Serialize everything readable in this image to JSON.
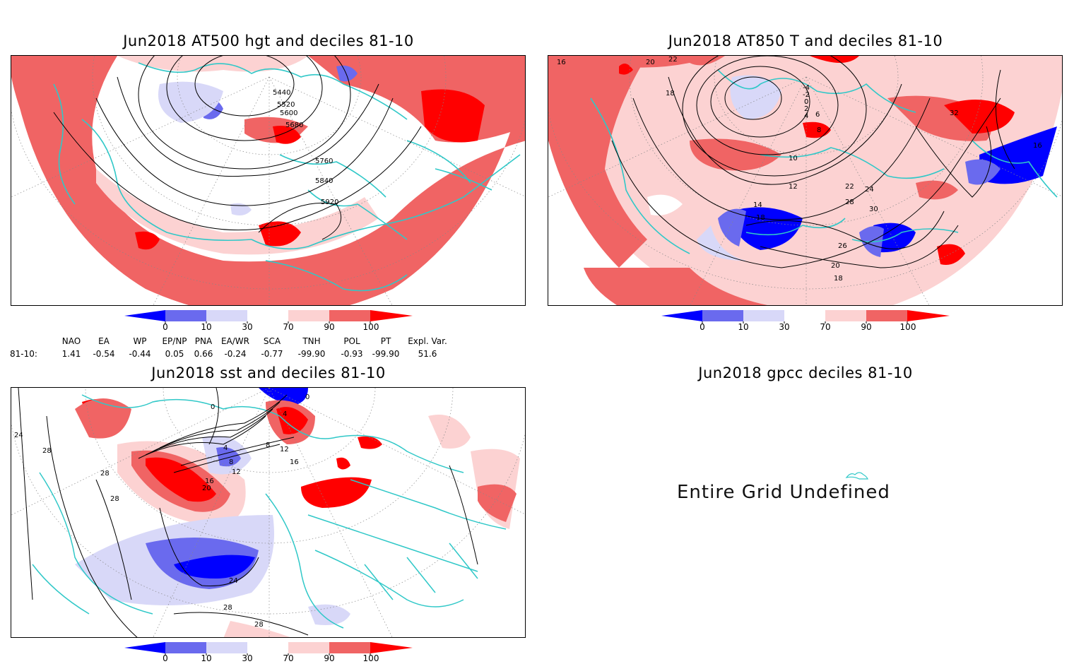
{
  "panels": {
    "hgt500": {
      "title": "Jun2018 AT500 hgt and deciles 81-10",
      "contour_labels": [
        "5440",
        "5520",
        "5600",
        "5680",
        "5760",
        "5840",
        "5920"
      ]
    },
    "t850": {
      "title": "Jun2018 AT850 T and deciles 81-10",
      "contour_labels": [
        "16",
        "20",
        "22",
        "18",
        "-4",
        "-2",
        "0",
        "2",
        "4",
        "6",
        "8",
        "10",
        "12",
        "14",
        "18",
        "28",
        "30",
        "32",
        "22",
        "24",
        "26",
        "20",
        "18",
        "16"
      ]
    },
    "sst": {
      "title": "Jun2018 sst and deciles 81-10",
      "contour_labels": [
        "24",
        "28",
        "28",
        "28",
        "0",
        "4",
        "8",
        "12",
        "16",
        "20",
        "24",
        "28",
        "28",
        "8",
        "12",
        "16",
        "4",
        "0"
      ]
    },
    "gpcc": {
      "title": "Jun2018 gpcc deciles 81-10",
      "message": "Entire Grid Undefined"
    }
  },
  "colorbar": {
    "labels": [
      "0",
      "10",
      "30",
      "70",
      "90",
      "100"
    ],
    "colors": [
      "#0000ff",
      "#6a6aee",
      "#d8d8f8",
      "#ffffff",
      "#fcd2d2",
      "#f06464",
      "#ff0000"
    ]
  },
  "indices": {
    "headers": [
      "NAO",
      "EA",
      "WP",
      "EP/NP",
      "PNA",
      "EA/WR",
      "SCA",
      "TNH",
      "POL",
      "PT",
      "Expl. Var."
    ],
    "row_label": "81-10:",
    "values": [
      "1.41",
      "-0.54",
      "-0.44",
      "0.05",
      "0.66",
      "-0.24",
      "-0.77",
      "-99.90",
      "-0.93",
      "-99.90",
      "51.6"
    ]
  },
  "map_colors": {
    "coast": "#30c8c8",
    "contour": "#000000",
    "grid": "#888888"
  }
}
